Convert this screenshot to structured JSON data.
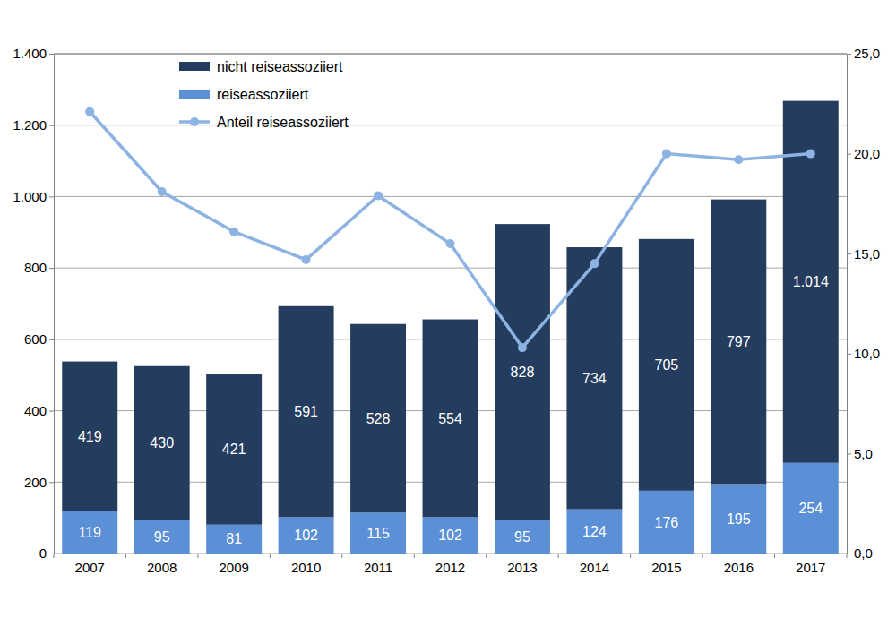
{
  "chart_data": {
    "type": "bar",
    "stacked": true,
    "grid": true,
    "legend": "upper left",
    "categories": [
      "2007",
      "2008",
      "2009",
      "2010",
      "2011",
      "2012",
      "2013",
      "2014",
      "2015",
      "2016",
      "2017"
    ],
    "series": [
      {
        "name": "nicht reiseassoziiert",
        "type": "bar",
        "color": "#243c5e",
        "data_labels": true,
        "values": [
          419,
          430,
          421,
          591,
          528,
          554,
          828,
          734,
          705,
          797,
          1014
        ],
        "value_labels": [
          "419",
          "430",
          "421",
          "591",
          "528",
          "554",
          "828",
          "734",
          "705",
          "797",
          "1.014"
        ]
      },
      {
        "name": "reiseassoziiert",
        "type": "bar",
        "color": "#5b8fd6",
        "data_labels": true,
        "values": [
          119,
          95,
          81,
          102,
          115,
          102,
          95,
          124,
          176,
          195,
          254
        ]
      },
      {
        "name": "Anteil reiseassoziiert",
        "type": "line",
        "axis": "y2",
        "color": "#8db3e2",
        "marker": "circle",
        "data_labels": false,
        "values": [
          22.1,
          18.1,
          16.1,
          14.7,
          17.9,
          15.5,
          10.3,
          14.5,
          20.0,
          19.7,
          20.0
        ]
      }
    ],
    "ylim": [
      0,
      1400
    ],
    "yticks": [
      0,
      200,
      400,
      600,
      800,
      {
        "value": 1000,
        "label": "1.000"
      },
      {
        "value": 1200,
        "label": "1.200"
      },
      {
        "value": 1400,
        "label": "1.400"
      }
    ],
    "y2lim": [
      0,
      25
    ],
    "y2ticks": [
      {
        "value": 0,
        "label": "0,0"
      },
      {
        "value": 5,
        "label": "5,0"
      },
      {
        "value": 10,
        "label": "10,0"
      },
      {
        "value": 15,
        "label": "15,0"
      },
      {
        "value": 20,
        "label": "20,0"
      },
      {
        "value": 25,
        "label": "25,0"
      }
    ]
  }
}
